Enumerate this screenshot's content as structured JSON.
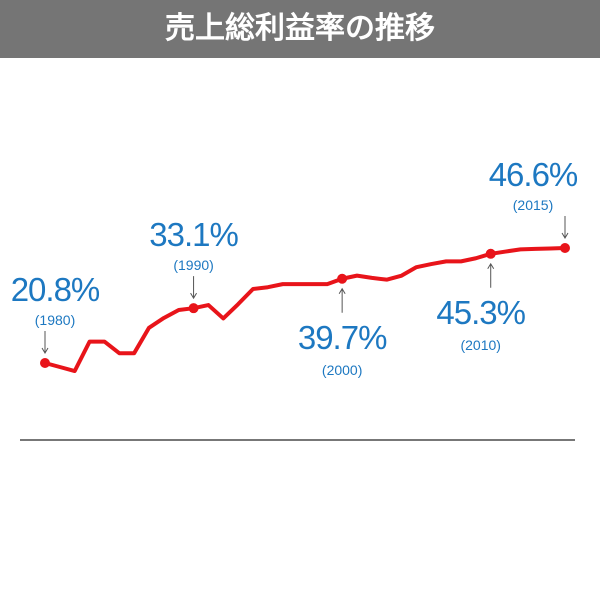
{
  "chart_data": {
    "type": "line",
    "title": "売上総利益率の推移",
    "x": [
      1980,
      1981,
      1982,
      1983,
      1984,
      1985,
      1986,
      1987,
      1988,
      1989,
      1990,
      1991,
      1992,
      1993,
      1994,
      1995,
      1996,
      1997,
      1998,
      1999,
      2000,
      2001,
      2002,
      2003,
      2004,
      2005,
      2006,
      2007,
      2008,
      2009,
      2010,
      2011,
      2012,
      2013,
      2014,
      2015
    ],
    "x_labels": [
      "(1980)",
      null,
      null,
      null,
      null,
      null,
      null,
      null,
      null,
      null,
      "(1990)",
      null,
      null,
      null,
      null,
      null,
      null,
      null,
      null,
      null,
      "(2000)",
      null,
      null,
      null,
      null,
      null,
      null,
      null,
      null,
      null,
      "(2010)",
      null,
      null,
      null,
      null,
      "(2015)"
    ],
    "series": [
      {
        "color": "#e8141a",
        "values": [
          20.8,
          19.9,
          19.0,
          25.6,
          25.6,
          23.0,
          23.0,
          28.7,
          30.9,
          32.7,
          33.1,
          33.8,
          30.8,
          34.0,
          37.4,
          37.8,
          38.5,
          38.5,
          38.5,
          38.5,
          39.7,
          40.4,
          39.9,
          39.5,
          40.4,
          42.3,
          43.0,
          43.6,
          43.6,
          44.3,
          45.3,
          45.8,
          46.3,
          46.4,
          46.5,
          46.6
        ],
        "value_labels": [
          "20.8%",
          null,
          null,
          null,
          null,
          null,
          null,
          null,
          null,
          null,
          "33.1%",
          null,
          null,
          null,
          null,
          null,
          null,
          null,
          null,
          null,
          "39.7%",
          null,
          null,
          null,
          null,
          null,
          null,
          null,
          null,
          null,
          "45.3%",
          null,
          null,
          null,
          null,
          "46.6%"
        ]
      }
    ],
    "xlim": [
      1980,
      2015
    ],
    "ylim": [
      0,
      100
    ]
  }
}
